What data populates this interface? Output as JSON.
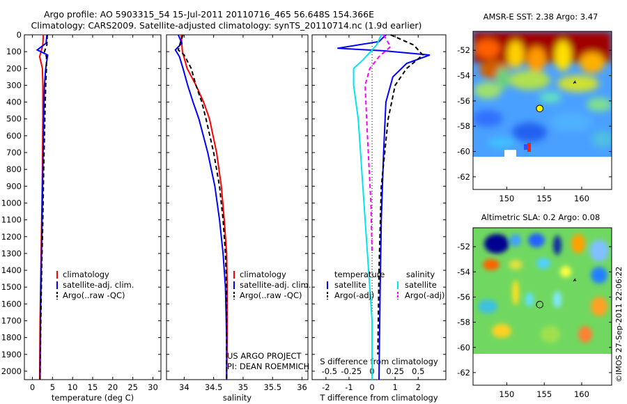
{
  "title": {
    "line1": "Argo profile: AO 5903315_54 15-Jul-2011 20110716_465 56.648S 154.366E",
    "line2": "Climatology: CARS2009. Satellite-adjusted climatology: synTS_20110714.nc (1.9d earlier)"
  },
  "credit": "©IMOS 27-Sep-2011 22:06:22",
  "project_note": [
    "US ARGO PROJECT",
    "PI: DEAN ROEMMICH"
  ],
  "colors": {
    "climatology": "#ff0000",
    "satellite": "#0000ff",
    "argo": "#000000",
    "sat_salinity": "#00e5ee",
    "argo_salinity": "#ff00ff"
  },
  "chart_data": [
    {
      "type": "line",
      "id": "temperature",
      "xlabel": "temperature (deg C)",
      "ylabel": "",
      "xlim": [
        -2,
        32
      ],
      "ylim": [
        2050,
        0
      ],
      "xticks": [
        0,
        5,
        10,
        15,
        20,
        25,
        30
      ],
      "yticks": [
        0,
        100,
        200,
        300,
        400,
        500,
        600,
        700,
        800,
        900,
        1000,
        1100,
        1200,
        1300,
        1400,
        1500,
        1600,
        1700,
        1800,
        1900,
        2000
      ],
      "legend": {
        "position": "lower-middle",
        "entries": [
          "climatology",
          "satellite-adj. clim.",
          "Argo(..raw -QC)"
        ]
      },
      "series": [
        {
          "name": "climatology",
          "color": "#ff0000",
          "dash": "",
          "points": [
            [
              2.7,
              0
            ],
            [
              2.6,
              60
            ],
            [
              1.8,
              130
            ],
            [
              2.5,
              200
            ],
            [
              2.6,
              300
            ],
            [
              2.6,
              500
            ],
            [
              2.5,
              800
            ],
            [
              2.3,
              1100
            ],
            [
              2.1,
              1400
            ],
            [
              1.9,
              1700
            ],
            [
              1.8,
              2050
            ]
          ]
        },
        {
          "name": "satellite-adj. clim.",
          "color": "#0000ff",
          "dash": "",
          "points": [
            [
              3.6,
              0
            ],
            [
              3.4,
              50
            ],
            [
              1.2,
              90
            ],
            [
              3.8,
              120
            ],
            [
              3.3,
              200
            ],
            [
              3.0,
              300
            ],
            [
              2.8,
              500
            ],
            [
              2.6,
              800
            ],
            [
              2.4,
              1100
            ],
            [
              2.2,
              1400
            ],
            [
              2.0,
              1700
            ],
            [
              1.9,
              2050
            ]
          ]
        },
        {
          "name": "Argo(..raw -QC)",
          "color": "#000000",
          "dash": "6,4",
          "points": [
            [
              3.7,
              0
            ],
            [
              3.6,
              60
            ],
            [
              3.0,
              100
            ],
            [
              3.5,
              130
            ],
            [
              3.5,
              200
            ],
            [
              3.3,
              300
            ],
            [
              3.1,
              500
            ],
            [
              2.8,
              800
            ],
            [
              2.6,
              1100
            ],
            [
              2.3,
              1400
            ],
            [
              2.1,
              1700
            ],
            [
              1.9,
              2050
            ]
          ]
        }
      ]
    },
    {
      "type": "line",
      "id": "salinity",
      "xlabel": "salinity",
      "ylabel": "",
      "xlim": [
        33.7,
        36.1
      ],
      "ylim": [
        2050,
        0
      ],
      "xticks": [
        34,
        34.5,
        35,
        35.5,
        36
      ],
      "legend": {
        "position": "lower-middle",
        "entries": [
          "climatology",
          "satellite-adj. clim.",
          "Argo(..raw -QC)"
        ]
      },
      "series": [
        {
          "name": "climatology",
          "color": "#ff0000",
          "dash": "",
          "points": [
            [
              33.95,
              0
            ],
            [
              33.97,
              100
            ],
            [
              34.05,
              200
            ],
            [
              34.2,
              300
            ],
            [
              34.33,
              400
            ],
            [
              34.43,
              500
            ],
            [
              34.55,
              700
            ],
            [
              34.63,
              900
            ],
            [
              34.68,
              1100
            ],
            [
              34.72,
              1300
            ],
            [
              34.73,
              1500
            ],
            [
              34.73,
              1800
            ],
            [
              34.72,
              2050
            ]
          ]
        },
        {
          "name": "satellite-adj. clim.",
          "color": "#0000ff",
          "dash": "",
          "points": [
            [
              33.9,
              0
            ],
            [
              33.96,
              50
            ],
            [
              33.85,
              90
            ],
            [
              33.92,
              130
            ],
            [
              33.98,
              200
            ],
            [
              34.06,
              300
            ],
            [
              34.15,
              400
            ],
            [
              34.25,
              500
            ],
            [
              34.4,
              700
            ],
            [
              34.52,
              900
            ],
            [
              34.6,
              1100
            ],
            [
              34.66,
              1300
            ],
            [
              34.7,
              1500
            ],
            [
              34.72,
              1800
            ],
            [
              34.72,
              2050
            ]
          ]
        },
        {
          "name": "Argo(..raw -QC)",
          "color": "#000000",
          "dash": "6,4",
          "points": [
            [
              33.98,
              0
            ],
            [
              33.94,
              40
            ],
            [
              33.9,
              90
            ],
            [
              34.0,
              120
            ],
            [
              34.12,
              200
            ],
            [
              34.2,
              300
            ],
            [
              34.3,
              400
            ],
            [
              34.37,
              500
            ],
            [
              34.5,
              700
            ],
            [
              34.6,
              900
            ],
            [
              34.66,
              1100
            ],
            [
              34.7,
              1300
            ],
            [
              34.72,
              1500
            ],
            [
              34.72,
              1800
            ],
            [
              34.72,
              2050
            ]
          ]
        }
      ]
    },
    {
      "type": "line",
      "id": "difference",
      "xlabel": "T difference from climatology",
      "top_axis_label": "S difference from climatology",
      "xlim": [
        -2.6,
        3.2
      ],
      "ylim": [
        2050,
        0
      ],
      "xticks": [
        -2,
        -1,
        0,
        1,
        2
      ],
      "top_xticks": [
        "-0.5",
        "-0.25",
        "0",
        "0.25",
        "0.5"
      ],
      "legend": {
        "position": "lower",
        "groups": [
          {
            "title": "temperature",
            "entries": [
              "satellite",
              "Argo(-adj)"
            ]
          },
          {
            "title": "salinity",
            "entries": [
              "satellite",
              "Argo(-adj)"
            ]
          }
        ]
      },
      "series": [
        {
          "name": "satellite",
          "group": "temperature",
          "color": "#0000ff",
          "dash": "",
          "points": [
            [
              0.6,
              0
            ],
            [
              0.3,
              40
            ],
            [
              -1.5,
              80
            ],
            [
              0.5,
              95
            ],
            [
              2.5,
              120
            ],
            [
              1.5,
              170
            ],
            [
              0.9,
              250
            ],
            [
              0.6,
              400
            ],
            [
              0.5,
              700
            ],
            [
              0.4,
              1100
            ],
            [
              0.35,
              1500
            ],
            [
              0.3,
              2050
            ]
          ]
        },
        {
          "name": "Argo(-adj)",
          "group": "temperature",
          "color": "#000000",
          "dash": "6,4",
          "points": [
            [
              0.8,
              0
            ],
            [
              1.8,
              60
            ],
            [
              2.2,
              120
            ],
            [
              1.5,
              200
            ],
            [
              1.0,
              300
            ],
            [
              0.7,
              500
            ],
            [
              0.4,
              900
            ],
            [
              0.3,
              1400
            ],
            [
              0.25,
              1900
            ]
          ]
        },
        {
          "name": "satellite",
          "group": "salinity",
          "color": "#00e5ee",
          "dash": "",
          "points": [
            [
              0.4,
              0
            ],
            [
              0.2,
              60
            ],
            [
              -0.4,
              150
            ],
            [
              -0.8,
              200
            ],
            [
              -0.8,
              300
            ],
            [
              -0.6,
              500
            ],
            [
              -0.4,
              900
            ],
            [
              -0.2,
              1300
            ],
            [
              0.0,
              1700
            ],
            [
              0.0,
              2050
            ]
          ]
        },
        {
          "name": "Argo(-adj)",
          "group": "salinity",
          "color": "#ff00ff",
          "dash": "6,4",
          "points": [
            [
              0.5,
              0
            ],
            [
              0.8,
              70
            ],
            [
              0.3,
              130
            ],
            [
              -0.1,
              200
            ],
            [
              -0.3,
              300
            ],
            [
              -0.2,
              600
            ],
            [
              -0.05,
              1000
            ],
            [
              0.0,
              1300
            ]
          ]
        }
      ]
    },
    {
      "type": "heatmap",
      "id": "sst-map",
      "title": "AMSR-E SST: 2.38 Argo: 3.47",
      "xlim": [
        145.5,
        164
      ],
      "ylim": [
        -63,
        -50.5
      ],
      "xticks": [
        150,
        155,
        160
      ],
      "yticks": [
        -52,
        -54,
        -56,
        -58,
        -60,
        -62
      ],
      "profile_marker": {
        "lon": 154.4,
        "lat": -56.6
      }
    },
    {
      "type": "heatmap",
      "id": "sla-map",
      "title": "Altimetric SLA: 0.2 Argo: 0.08",
      "xlim": [
        145.5,
        164
      ],
      "ylim": [
        -63,
        -50.5
      ],
      "xticks": [
        150,
        155,
        160
      ],
      "yticks": [
        -52,
        -54,
        -56,
        -58,
        -60,
        -62
      ],
      "profile_marker": {
        "lon": 154.4,
        "lat": -56.6
      }
    }
  ]
}
